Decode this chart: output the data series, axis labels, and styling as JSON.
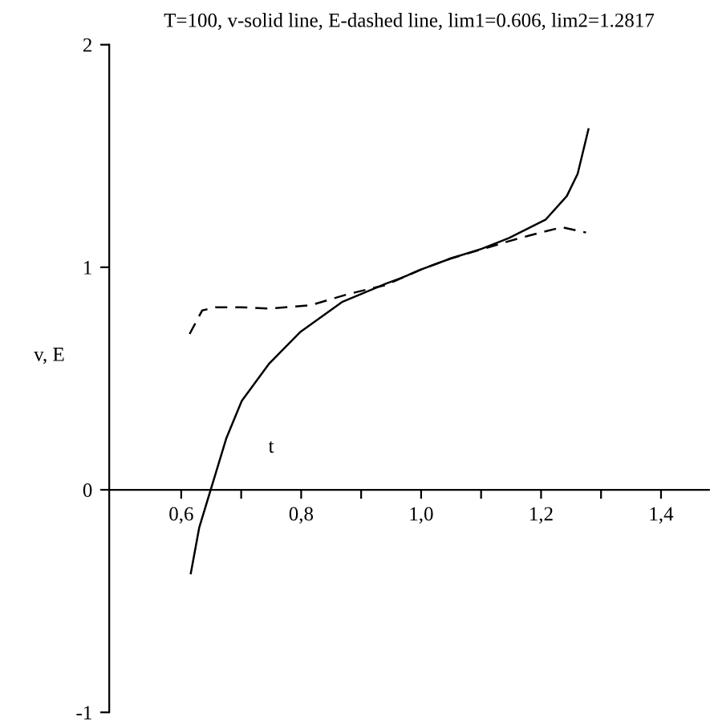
{
  "chart_data": {
    "type": "line",
    "title": "T=100, v-solid line, E-dashed line, lim1=0.606, lim2=1.2817",
    "xlabel": "t",
    "ylabel": "v, E",
    "series": [
      {
        "color": "#000000",
        "line_style": "solid",
        "x": [
          0.616,
          0.63,
          0.648,
          0.675,
          0.701,
          0.746,
          0.799,
          0.869,
          0.941,
          0.968,
          1.0,
          1.05,
          1.101,
          1.146,
          1.208,
          1.243,
          1.261,
          1.279
        ],
        "values": [
          -0.375,
          -0.17,
          -0.01,
          0.23,
          0.4,
          0.565,
          0.71,
          0.845,
          0.926,
          0.953,
          0.99,
          1.04,
          1.083,
          1.131,
          1.215,
          1.32,
          1.42,
          1.62
        ]
      },
      {
        "color": "#000000",
        "line_style": "dashed",
        "x": [
          0.614,
          0.635,
          0.657,
          0.7,
          0.746,
          0.817,
          0.879,
          0.941,
          1.0,
          1.05,
          1.1,
          1.15,
          1.181,
          1.235,
          1.275
        ],
        "values": [
          0.7,
          0.806,
          0.82,
          0.82,
          0.814,
          0.83,
          0.88,
          0.92,
          0.99,
          1.04,
          1.08,
          1.12,
          1.143,
          1.18,
          1.156
        ]
      }
    ],
    "xlim": [
      0.48,
      1.48
    ],
    "ylim": [
      -1,
      2
    ],
    "xticks": [
      {
        "value": 0.6,
        "label": "0,6"
      },
      {
        "value": 0.7,
        "label": null
      },
      {
        "value": 0.8,
        "label": "0,8"
      },
      {
        "value": 0.9,
        "label": null
      },
      {
        "value": 1.0,
        "label": "1,0"
      },
      {
        "value": 1.1,
        "label": null
      },
      {
        "value": 1.2,
        "label": "1,2"
      },
      {
        "value": 1.3,
        "label": null
      },
      {
        "value": 1.4,
        "label": "1,4"
      }
    ],
    "yticks": [
      {
        "value": -1,
        "label": "-1"
      },
      0,
      1,
      2
    ]
  }
}
